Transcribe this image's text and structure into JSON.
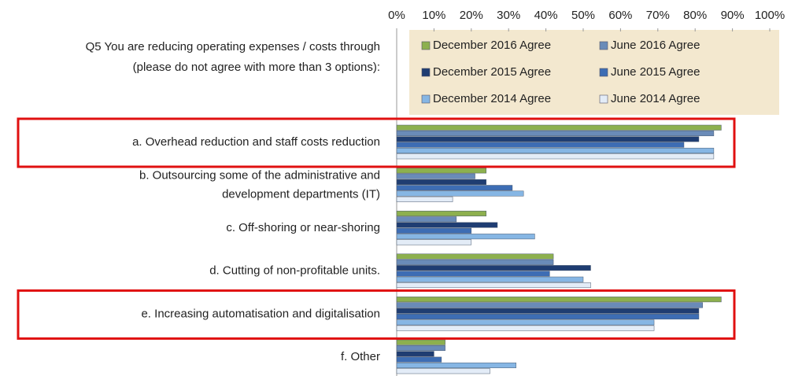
{
  "chart_data": {
    "type": "bar",
    "orientation": "horizontal",
    "question": [
      "Q5 You are reducing operating expenses / costs through",
      "(please do not agree with more than 3 options):"
    ],
    "categories": [
      [
        "a. Overhead reduction and staff costs reduction"
      ],
      [
        "b. Outsourcing some of the administrative and",
        "development departments (IT)"
      ],
      [
        "c. Off-shoring or near-shoring"
      ],
      [
        "d. Cutting of non-profitable units."
      ],
      [
        "e. Increasing automatisation and digitalisation"
      ],
      [
        "f. Other"
      ]
    ],
    "series": [
      {
        "name": "December 2016  Agree",
        "color": "#8db04e",
        "values": [
          87,
          24,
          24,
          42,
          87,
          13
        ]
      },
      {
        "name": "June 2016  Agree",
        "color": "#6a8bb8",
        "values": [
          85,
          21,
          16,
          42,
          82,
          13
        ]
      },
      {
        "name": "December 2015  Agree",
        "color": "#1f3d72",
        "values": [
          81,
          24,
          27,
          52,
          81,
          10
        ]
      },
      {
        "name": "June 2015  Agree",
        "color": "#3d6db4",
        "values": [
          77,
          31,
          20,
          41,
          81,
          12
        ]
      },
      {
        "name": "December 2014  Agree",
        "color": "#86b6e4",
        "values": [
          85,
          34,
          37,
          50,
          69,
          32
        ]
      },
      {
        "name": "June 2014  Agree",
        "color": "#e3ecf7",
        "values": [
          85,
          15,
          20,
          52,
          69,
          25
        ]
      }
    ],
    "xlim": [
      0,
      100
    ],
    "xticks": [
      {
        "value": 0,
        "label": "0%"
      },
      {
        "value": 10,
        "label": "10%"
      },
      {
        "value": 20,
        "label": "20%"
      },
      {
        "value": 30,
        "label": "30%"
      },
      {
        "value": 40,
        "label": "40%"
      },
      {
        "value": 50,
        "label": "50%"
      },
      {
        "value": 60,
        "label": "60%"
      },
      {
        "value": 70,
        "label": "70%"
      },
      {
        "value": 80,
        "label": "80%"
      },
      {
        "value": 90,
        "label": "90%"
      },
      {
        "value": 100,
        "label": "100%"
      }
    ],
    "grid": false,
    "highlighted": [
      0,
      4
    ]
  }
}
